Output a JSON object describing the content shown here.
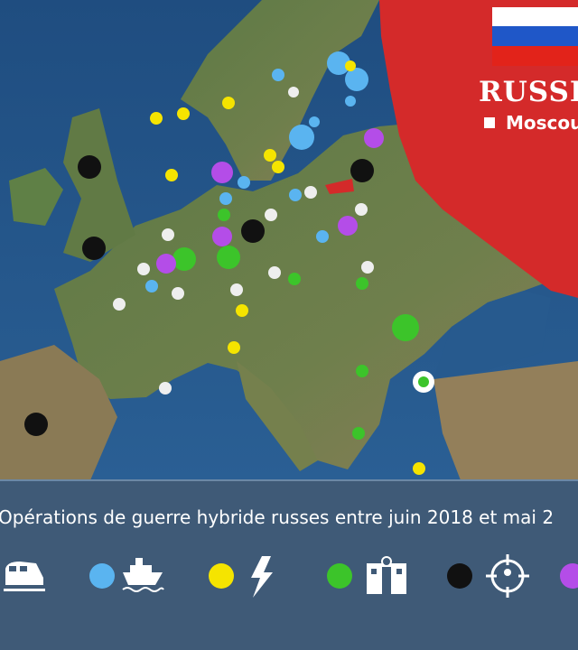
{
  "map": {
    "country_label": "RUSSI",
    "capital_label": "Moscou"
  },
  "caption": "Opérations de guerre hybride russes entre juin 2018 et mai 2"
}
